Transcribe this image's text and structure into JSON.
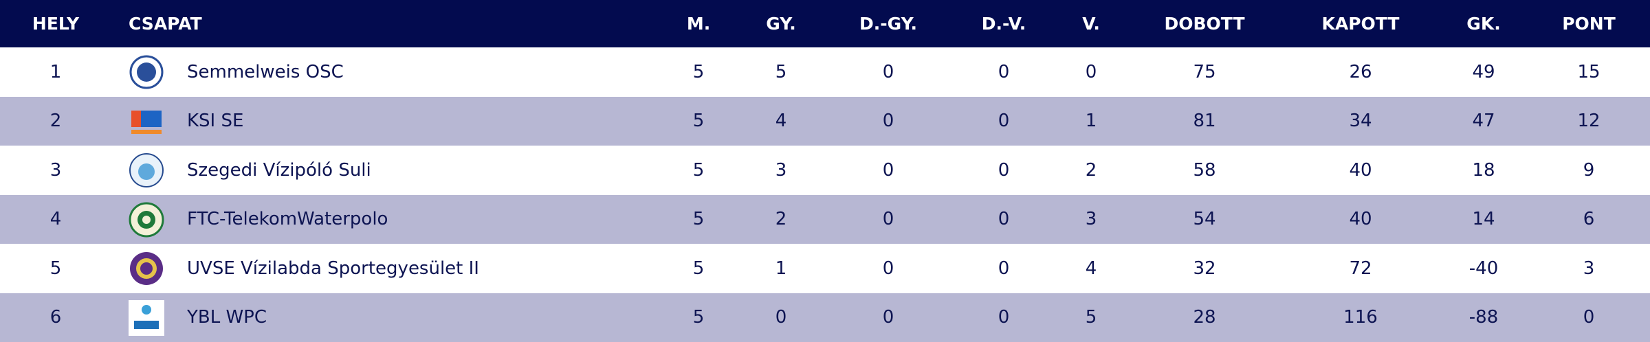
{
  "table": {
    "headers": [
      "HELY",
      "CSAPAT",
      "M.",
      "GY.",
      "D.-GY.",
      "D.-V.",
      "V.",
      "DOBOTT",
      "KAPOTT",
      "GK.",
      "PONT"
    ],
    "rows": [
      [
        1,
        "Semmelweis OSC",
        5,
        5,
        0,
        0,
        0,
        75,
        26,
        49,
        15
      ],
      [
        2,
        "KSI SE",
        5,
        4,
        0,
        0,
        1,
        81,
        34,
        47,
        12
      ],
      [
        3,
        "Szegedi Vízipóló Suli",
        5,
        3,
        0,
        0,
        2,
        58,
        40,
        18,
        9
      ],
      [
        4,
        "FTC-TelekomWaterpolo",
        5,
        2,
        0,
        0,
        3,
        54,
        40,
        14,
        6
      ],
      [
        5,
        "UVSE Vízilabda Sportegyesület II",
        5,
        1,
        0,
        0,
        4,
        32,
        72,
        -40,
        3
      ],
      [
        6,
        "YBL WPC",
        5,
        0,
        0,
        0,
        5,
        28,
        116,
        -88,
        0
      ]
    ]
  }
}
